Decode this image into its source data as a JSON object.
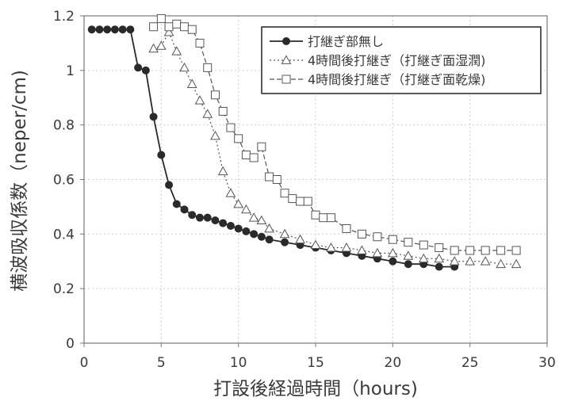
{
  "chart_data": {
    "type": "line",
    "title": "",
    "xlabel": "打設後経過時間（hours)",
    "ylabel": "横波吸収係数（neper/cm)",
    "xlim": [
      0,
      30
    ],
    "ylim": [
      0,
      1.2
    ],
    "xticks": [
      0,
      5,
      10,
      15,
      20,
      25,
      30
    ],
    "yticks": [
      0,
      0.2,
      0.4,
      0.6,
      0.8,
      1,
      1.2
    ],
    "xtick_labels": [
      "0",
      "5",
      "10",
      "15",
      "20",
      "25",
      "30"
    ],
    "ytick_labels": [
      "0",
      "0.2",
      "0.4",
      "0.6",
      "0.8",
      "1",
      "1.2"
    ],
    "grid": true,
    "legend_position": "top-right",
    "series": [
      {
        "name": "打継ぎ部無し",
        "marker": "filled-circle",
        "line": "solid",
        "x": [
          0.5,
          1,
          1.5,
          2,
          2.5,
          3,
          3.5,
          4,
          4.5,
          5,
          5.5,
          6,
          6.5,
          7,
          7.5,
          8,
          8.5,
          9,
          9.5,
          10,
          10.5,
          11,
          11.5,
          12,
          13,
          14,
          15,
          16,
          17,
          18,
          19,
          20,
          21,
          22,
          23,
          24
        ],
        "y": [
          1.15,
          1.15,
          1.15,
          1.15,
          1.15,
          1.15,
          1.01,
          1.0,
          0.83,
          0.69,
          0.58,
          0.51,
          0.49,
          0.47,
          0.46,
          0.46,
          0.45,
          0.44,
          0.43,
          0.42,
          0.41,
          0.4,
          0.39,
          0.38,
          0.37,
          0.36,
          0.35,
          0.34,
          0.33,
          0.32,
          0.31,
          0.3,
          0.29,
          0.29,
          0.28,
          0.28
        ]
      },
      {
        "name": "4時間後打継ぎ（打継ぎ面湿潤)",
        "marker": "open-triangle",
        "line": "dotted",
        "x": [
          4.5,
          5,
          5.5,
          6,
          6.5,
          7,
          7.5,
          8,
          8.5,
          9,
          9.5,
          10,
          10.5,
          11,
          11.5,
          12,
          13,
          14,
          15,
          16,
          17,
          18,
          19,
          20,
          21,
          22,
          23,
          24,
          25,
          26,
          27,
          28
        ],
        "y": [
          1.08,
          1.09,
          1.14,
          1.07,
          1.01,
          0.95,
          0.89,
          0.84,
          0.76,
          0.63,
          0.55,
          0.51,
          0.49,
          0.46,
          0.45,
          0.42,
          0.4,
          0.38,
          0.36,
          0.35,
          0.35,
          0.34,
          0.33,
          0.33,
          0.32,
          0.31,
          0.31,
          0.3,
          0.3,
          0.3,
          0.29,
          0.29
        ]
      },
      {
        "name": "4時間後打継ぎ（打継ぎ面乾燥)",
        "marker": "open-square",
        "line": "dashed",
        "x": [
          4.5,
          5,
          5.5,
          6,
          6.5,
          7,
          7.5,
          8,
          8.5,
          9,
          9.5,
          10,
          10.5,
          11,
          11.5,
          12,
          12.5,
          13,
          13.5,
          14,
          14.5,
          15,
          15.5,
          16,
          17,
          18,
          19,
          20,
          21,
          22,
          23,
          24,
          25,
          26,
          27,
          28
        ],
        "y": [
          1.16,
          1.19,
          1.16,
          1.17,
          1.16,
          1.15,
          1.1,
          1.01,
          0.91,
          0.85,
          0.79,
          0.75,
          0.69,
          0.68,
          0.72,
          0.61,
          0.6,
          0.55,
          0.53,
          0.52,
          0.52,
          0.47,
          0.46,
          0.46,
          0.42,
          0.4,
          0.39,
          0.38,
          0.37,
          0.36,
          0.35,
          0.34,
          0.34,
          0.34,
          0.34,
          0.34
        ]
      }
    ]
  }
}
